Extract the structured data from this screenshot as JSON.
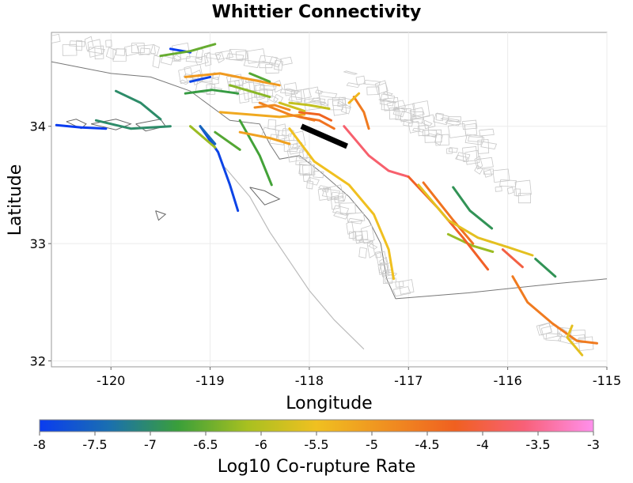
{
  "title": "Whittier Connectivity",
  "x_axis": {
    "label": "Longitude",
    "ticks": [
      "-120",
      "-119",
      "-118",
      "-117",
      "-116",
      "-115"
    ],
    "range": [
      -120.6,
      -115.0
    ]
  },
  "y_axis": {
    "label": "Latitude",
    "ticks": [
      "32",
      "33",
      "34"
    ],
    "range": [
      31.95,
      34.8
    ]
  },
  "colorbar": {
    "label": "Log10 Co-rupture Rate",
    "ticks": [
      "-8",
      "-7.5",
      "-7",
      "-6.5",
      "-6",
      "-5.5",
      "-5",
      "-4.5",
      "-4",
      "-3.5",
      "-3"
    ],
    "range": [
      -8,
      -3
    ],
    "colors": [
      "#0a3cf0",
      "#1a6fb0",
      "#3a9f3a",
      "#a8c020",
      "#f0c020",
      "#f09020",
      "#f06020",
      "#f86078",
      "#ff90ec"
    ]
  },
  "highlight": {
    "name": "Whittier",
    "color": "#000000",
    "coords": [
      [
        -118.08,
        34.0
      ],
      [
        -117.62,
        33.83
      ]
    ]
  },
  "faults": [
    {
      "v": -8.0,
      "c": [
        [
          -120.55,
          34.01
        ],
        [
          -120.3,
          33.99
        ],
        [
          -120.05,
          33.98
        ]
      ]
    },
    {
      "v": -8.0,
      "c": [
        [
          -119.4,
          34.66
        ],
        [
          -119.2,
          34.63
        ]
      ]
    },
    {
      "v": -7.9,
      "c": [
        [
          -119.2,
          34.38
        ],
        [
          -119.0,
          34.42
        ]
      ]
    },
    {
      "v": -7.9,
      "c": [
        [
          -119.1,
          34.0
        ],
        [
          -118.92,
          33.78
        ],
        [
          -118.8,
          33.5
        ],
        [
          -118.72,
          33.28
        ]
      ]
    },
    {
      "v": -7.5,
      "c": [
        [
          -119.1,
          34.0
        ],
        [
          -118.95,
          33.85
        ]
      ]
    },
    {
      "v": -7.0,
      "c": [
        [
          -120.15,
          34.05
        ],
        [
          -119.8,
          33.98
        ],
        [
          -119.4,
          34.0
        ]
      ]
    },
    {
      "v": -7.0,
      "c": [
        [
          -119.95,
          34.3
        ],
        [
          -119.7,
          34.2
        ],
        [
          -119.5,
          34.06
        ]
      ]
    },
    {
      "v": -6.5,
      "c": [
        [
          -119.5,
          34.6
        ],
        [
          -119.2,
          34.64
        ],
        [
          -118.95,
          34.7
        ]
      ]
    },
    {
      "v": -6.8,
      "c": [
        [
          -119.25,
          34.28
        ],
        [
          -118.98,
          34.31
        ],
        [
          -118.72,
          34.28
        ]
      ]
    },
    {
      "v": -6.6,
      "c": [
        [
          -118.95,
          33.95
        ],
        [
          -118.7,
          33.8
        ]
      ]
    },
    {
      "v": -6.2,
      "c": [
        [
          -119.2,
          34.0
        ],
        [
          -118.95,
          33.82
        ]
      ]
    },
    {
      "v": -6.7,
      "c": [
        [
          -118.7,
          34.05
        ],
        [
          -118.5,
          33.75
        ],
        [
          -118.38,
          33.5
        ]
      ]
    },
    {
      "v": -6.9,
      "c": [
        [
          -116.55,
          33.48
        ],
        [
          -116.38,
          33.28
        ],
        [
          -116.16,
          33.13
        ]
      ]
    },
    {
      "v": -6.9,
      "c": [
        [
          -115.72,
          32.87
        ],
        [
          -115.52,
          32.72
        ]
      ]
    },
    {
      "v": -6.2,
      "c": [
        [
          -116.6,
          33.08
        ],
        [
          -116.35,
          32.98
        ],
        [
          -116.15,
          32.93
        ]
      ]
    },
    {
      "v": -5.2,
      "c": [
        [
          -118.9,
          34.12
        ],
        [
          -118.6,
          34.1
        ],
        [
          -118.3,
          34.08
        ],
        [
          -118.05,
          34.1
        ]
      ]
    },
    {
      "v": -5.0,
      "c": [
        [
          -119.25,
          34.42
        ],
        [
          -118.9,
          34.45
        ],
        [
          -118.6,
          34.4
        ],
        [
          -118.3,
          34.35
        ]
      ]
    },
    {
      "v": -4.7,
      "c": [
        [
          -118.5,
          34.2
        ],
        [
          -118.2,
          34.1
        ],
        [
          -117.95,
          34.05
        ]
      ]
    },
    {
      "v": -5.5,
      "c": [
        [
          -118.2,
          33.98
        ],
        [
          -117.95,
          33.7
        ],
        [
          -117.6,
          33.5
        ],
        [
          -117.35,
          33.25
        ],
        [
          -117.2,
          32.95
        ],
        [
          -117.15,
          32.7
        ]
      ]
    },
    {
      "v": -4.6,
      "c": [
        [
          -117.55,
          34.25
        ],
        [
          -117.45,
          34.12
        ],
        [
          -117.4,
          33.98
        ]
      ]
    },
    {
      "v": -5.4,
      "c": [
        [
          -117.6,
          34.2
        ],
        [
          -117.5,
          34.28
        ]
      ]
    },
    {
      "v": -5.1,
      "c": [
        [
          -118.7,
          33.95
        ],
        [
          -118.4,
          33.9
        ],
        [
          -118.2,
          33.85
        ]
      ]
    },
    {
      "v": -3.7,
      "c": [
        [
          -117.65,
          34.0
        ],
        [
          -117.4,
          33.75
        ],
        [
          -117.2,
          33.62
        ],
        [
          -117.0,
          33.57
        ]
      ]
    },
    {
      "v": -4.2,
      "c": [
        [
          -117.0,
          33.57
        ],
        [
          -116.7,
          33.3
        ],
        [
          -116.45,
          33.05
        ],
        [
          -116.2,
          32.78
        ]
      ]
    },
    {
      "v": -4.5,
      "c": [
        [
          -116.85,
          33.52
        ],
        [
          -116.55,
          33.2
        ],
        [
          -116.35,
          33.0
        ]
      ]
    },
    {
      "v": -5.6,
      "c": [
        [
          -116.9,
          33.5
        ],
        [
          -116.6,
          33.2
        ],
        [
          -116.3,
          33.05
        ],
        [
          -116.0,
          32.97
        ],
        [
          -115.75,
          32.9
        ]
      ]
    },
    {
      "v": -4.6,
      "c": [
        [
          -115.95,
          32.72
        ],
        [
          -115.8,
          32.5
        ],
        [
          -115.55,
          32.32
        ],
        [
          -115.3,
          32.17
        ],
        [
          -115.1,
          32.15
        ]
      ]
    },
    {
      "v": -5.6,
      "c": [
        [
          -115.35,
          32.3
        ],
        [
          -115.4,
          32.2
        ],
        [
          -115.25,
          32.05
        ]
      ]
    },
    {
      "v": -4.0,
      "c": [
        [
          -116.05,
          32.95
        ],
        [
          -115.85,
          32.8
        ]
      ]
    },
    {
      "v": -4.5,
      "c": [
        [
          -118.1,
          34.08
        ],
        [
          -117.9,
          34.05
        ],
        [
          -117.75,
          33.98
        ]
      ]
    },
    {
      "v": -4.3,
      "c": [
        [
          -118.1,
          34.12
        ],
        [
          -117.9,
          34.1
        ],
        [
          -117.78,
          34.05
        ]
      ]
    },
    {
      "v": -5.9,
      "c": [
        [
          -118.2,
          34.2
        ],
        [
          -118.0,
          34.18
        ],
        [
          -117.8,
          34.15
        ]
      ]
    },
    {
      "v": -4.8,
      "c": [
        [
          -118.55,
          34.16
        ],
        [
          -118.35,
          34.18
        ],
        [
          -118.2,
          34.14
        ]
      ]
    },
    {
      "v": -6.3,
      "c": [
        [
          -118.8,
          34.35
        ],
        [
          -118.6,
          34.3
        ],
        [
          -118.4,
          34.25
        ]
      ]
    },
    {
      "v": -6.6,
      "c": [
        [
          -118.6,
          34.45
        ],
        [
          -118.4,
          34.38
        ]
      ]
    },
    {
      "v": -5.8,
      "c": [
        [
          -118.3,
          34.2
        ],
        [
          -118.05,
          34.13
        ]
      ]
    }
  ],
  "land": [
    [
      [
        -120.6,
        34.55
      ],
      [
        -120.3,
        34.5
      ],
      [
        -120.0,
        34.45
      ],
      [
        -119.6,
        34.42
      ],
      [
        -119.2,
        34.3
      ],
      [
        -118.8,
        34.05
      ],
      [
        -118.5,
        34.02
      ],
      [
        -118.4,
        33.85
      ],
      [
        -118.3,
        33.72
      ],
      [
        -118.1,
        33.75
      ],
      [
        -117.9,
        33.62
      ],
      [
        -117.6,
        33.4
      ],
      [
        -117.4,
        33.2
      ],
      [
        -117.28,
        33.0
      ],
      [
        -117.22,
        32.7
      ],
      [
        -117.13,
        32.53
      ]
    ],
    [
      [
        -117.13,
        32.53
      ],
      [
        -116.4,
        32.58
      ],
      [
        -115.5,
        32.66
      ],
      [
        -115.0,
        32.7
      ]
    ]
  ],
  "islands": [
    [
      [
        -120.45,
        34.04
      ],
      [
        -120.35,
        34.06
      ],
      [
        -120.25,
        34.02
      ],
      [
        -120.3,
        33.98
      ],
      [
        -120.45,
        34.04
      ]
    ],
    [
      [
        -120.2,
        34.02
      ],
      [
        -119.95,
        34.06
      ],
      [
        -119.8,
        34.02
      ],
      [
        -119.95,
        33.97
      ],
      [
        -120.2,
        34.02
      ]
    ],
    [
      [
        -119.75,
        34.02
      ],
      [
        -119.5,
        34.06
      ],
      [
        -119.45,
        34.0
      ],
      [
        -119.65,
        33.96
      ],
      [
        -119.75,
        34.02
      ]
    ],
    [
      [
        -118.6,
        33.48
      ],
      [
        -118.45,
        33.45
      ],
      [
        -118.3,
        33.38
      ],
      [
        -118.45,
        33.33
      ],
      [
        -118.6,
        33.48
      ]
    ],
    [
      [
        -119.55,
        33.28
      ],
      [
        -119.45,
        33.25
      ],
      [
        -119.52,
        33.2
      ],
      [
        -119.55,
        33.28
      ]
    ]
  ],
  "offshore": [
    [
      [
        -118.85,
        33.65
      ],
      [
        -118.6,
        33.4
      ],
      [
        -118.4,
        33.1
      ],
      [
        -118.2,
        32.85
      ],
      [
        -118.0,
        32.6
      ],
      [
        -117.75,
        32.35
      ],
      [
        -117.45,
        32.1
      ]
    ]
  ]
}
